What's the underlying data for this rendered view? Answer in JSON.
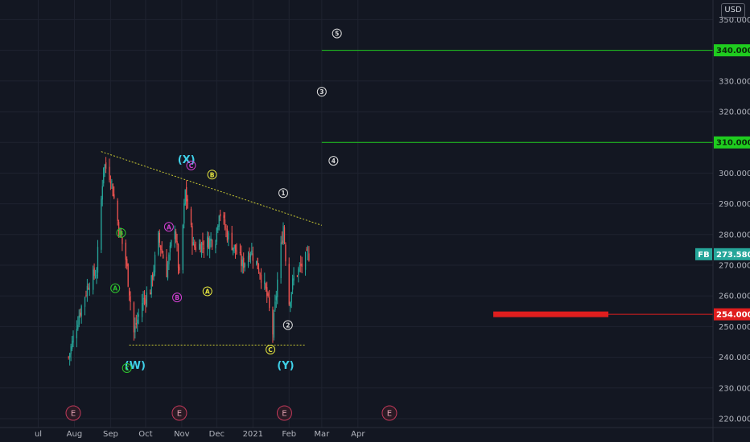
{
  "currency": "USD",
  "symbol": "FB",
  "colors": {
    "background": "#131722",
    "grid": "#1f2330",
    "up": "#26a69a",
    "down": "#ef5350",
    "target_line": "#1fcc1f",
    "support": "#e01e1e",
    "trendline": "#c8c832",
    "wave_cyan": "#3fd0e8",
    "wave_magenta": "#d03fd0",
    "wave_green": "#2fc42f",
    "wave_yellow": "#e8e83f",
    "wave_white": "#dddddd",
    "event": "#c0395a"
  },
  "chart_data": {
    "type": "candlestick",
    "x_ticks": [
      "ul",
      "Aug",
      "Sep",
      "Oct",
      "Nov",
      "Dec",
      "2021",
      "Feb",
      "Mar",
      "Apr"
    ],
    "y_ticks": [
      "220.000",
      "230.000",
      "240.000",
      "250.000",
      "260.000",
      "270.000",
      "280.000",
      "290.000",
      "300.000",
      "310.000",
      "320.000",
      "330.000",
      "340.000",
      "350.000"
    ],
    "ylim": [
      218,
      362
    ],
    "last_price": "273.580",
    "key_levels": [
      {
        "price": 340,
        "label": "340.000"
      },
      {
        "price": 310,
        "label": "310.000"
      },
      {
        "price": 254,
        "label": "254.000"
      }
    ],
    "trendline_upper": [
      {
        "date": "2020-08-24",
        "price": 307
      },
      {
        "date": "2021-03-01",
        "price": 283
      }
    ],
    "trendline_lower": [
      {
        "date": "2020-09-17",
        "price": 244
      },
      {
        "date": "2021-02-15",
        "price": 244
      }
    ],
    "anchors": [
      {
        "date": "2020-07-27",
        "price": 240
      },
      {
        "date": "2020-08-05",
        "price": 254
      },
      {
        "date": "2020-08-13",
        "price": 264
      },
      {
        "date": "2020-08-20",
        "price": 268
      },
      {
        "date": "2020-08-26",
        "price": 303
      },
      {
        "date": "2020-09-01",
        "price": 299
      },
      {
        "date": "2020-09-08",
        "price": 282
      },
      {
        "date": "2020-09-14",
        "price": 272
      },
      {
        "date": "2020-09-21",
        "price": 248
      },
      {
        "date": "2020-09-28",
        "price": 258
      },
      {
        "date": "2020-10-05",
        "price": 262
      },
      {
        "date": "2020-10-12",
        "price": 279
      },
      {
        "date": "2020-10-19",
        "price": 268
      },
      {
        "date": "2020-10-26",
        "price": 283
      },
      {
        "date": "2020-10-30",
        "price": 266
      },
      {
        "date": "2020-11-04",
        "price": 294
      },
      {
        "date": "2020-11-11",
        "price": 276
      },
      {
        "date": "2020-11-20",
        "price": 277
      },
      {
        "date": "2020-11-30",
        "price": 279
      },
      {
        "date": "2020-12-03",
        "price": 288
      },
      {
        "date": "2020-12-10",
        "price": 280
      },
      {
        "date": "2020-12-18",
        "price": 274
      },
      {
        "date": "2020-12-23",
        "price": 270
      },
      {
        "date": "2020-12-30",
        "price": 275
      },
      {
        "date": "2021-01-07",
        "price": 268
      },
      {
        "date": "2021-01-13",
        "price": 260
      },
      {
        "date": "2021-01-18",
        "price": 248
      },
      {
        "date": "2021-01-22",
        "price": 265
      },
      {
        "date": "2021-01-27",
        "price": 283
      },
      {
        "date": "2021-02-01",
        "price": 258
      },
      {
        "date": "2021-02-05",
        "price": 266
      },
      {
        "date": "2021-02-12",
        "price": 270
      },
      {
        "date": "2021-02-18",
        "price": 273.58
      }
    ],
    "wave_labels": [
      {
        "text": "(X)",
        "date": "2020-11-05",
        "price": 304.5,
        "style": "cyan"
      },
      {
        "text": "(W)",
        "date": "2020-09-22",
        "price": 237.5,
        "style": "cyan"
      },
      {
        "text": "(Y)",
        "date": "2021-01-29",
        "price": 237.5,
        "style": "cyan"
      },
      {
        "text": "A",
        "date": "2020-09-05",
        "price": 262.5,
        "style": "green"
      },
      {
        "text": "B",
        "date": "2020-09-10",
        "price": 280.5,
        "style": "green"
      },
      {
        "text": "C",
        "date": "2020-09-15",
        "price": 236.5,
        "style": "green"
      },
      {
        "text": "A",
        "date": "2020-10-21",
        "price": 282.5,
        "style": "magenta"
      },
      {
        "text": "B",
        "date": "2020-10-28",
        "price": 259.5,
        "style": "magenta"
      },
      {
        "text": "C",
        "date": "2020-11-09",
        "price": 302.5,
        "style": "magenta"
      },
      {
        "text": "A",
        "date": "2020-11-23",
        "price": 261.5,
        "style": "yellow"
      },
      {
        "text": "B",
        "date": "2020-11-27",
        "price": 299.5,
        "style": "yellow"
      },
      {
        "text": "C",
        "date": "2021-01-16",
        "price": 242.5,
        "style": "yellow"
      },
      {
        "text": "1",
        "date": "2021-01-27",
        "price": 293.5,
        "style": "white"
      },
      {
        "text": "2",
        "date": "2021-01-31",
        "price": 250.5,
        "style": "white"
      },
      {
        "text": "3",
        "date": "2021-03-01",
        "price": 326.5,
        "style": "white"
      },
      {
        "text": "4",
        "date": "2021-03-11",
        "price": 304.0,
        "style": "white"
      },
      {
        "text": "5",
        "date": "2021-03-14",
        "price": 345.5,
        "style": "white"
      }
    ],
    "events": [
      {
        "date": "2020-07-31",
        "label": "E"
      },
      {
        "date": "2020-10-30",
        "label": "E"
      },
      {
        "date": "2021-01-28",
        "label": "E"
      },
      {
        "date": "2021-04-28",
        "label": "E"
      }
    ]
  }
}
